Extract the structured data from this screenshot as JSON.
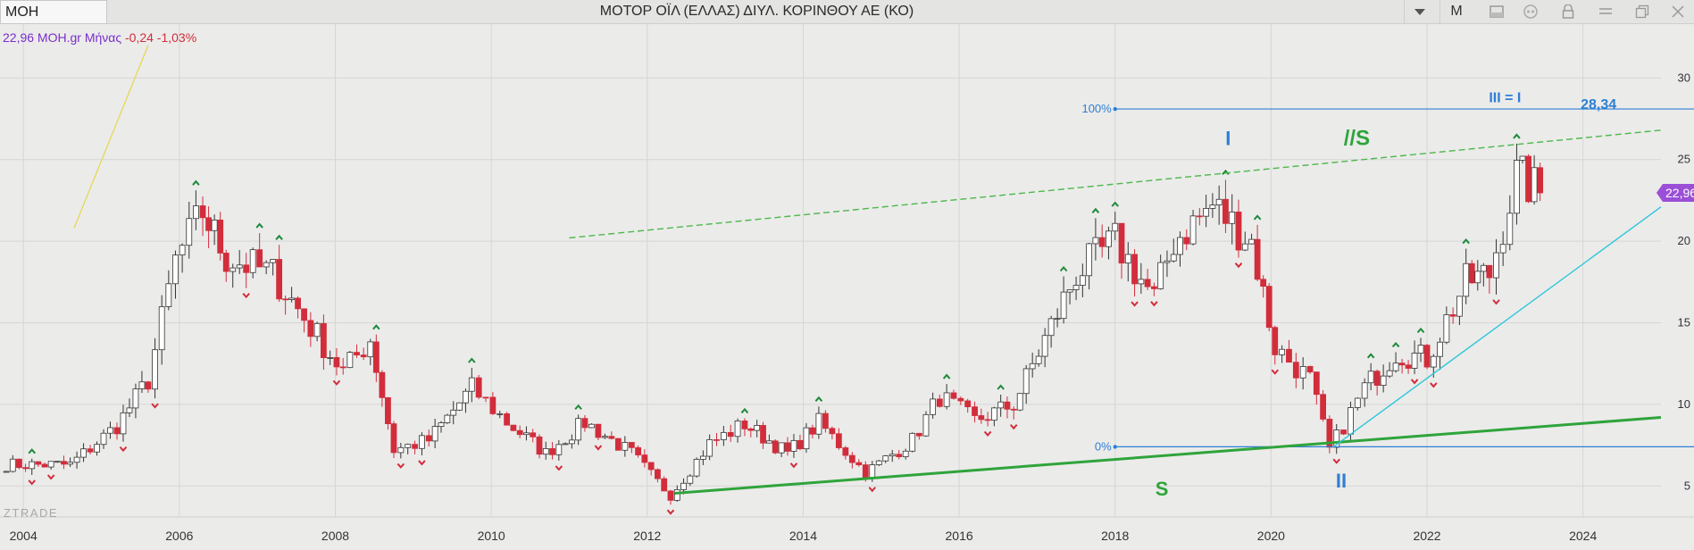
{
  "header": {
    "symbol": "MOH",
    "title": "ΜΟΤΟΡ ΟΪΛ (ΕΛΛΑΣ) ΔΙΥΛ. ΚΟΡΙΝΘΟΥ ΑΕ (ΚΟ)",
    "period_button": "M",
    "icons": [
      "chevron-down-icon",
      "window-icon",
      "quote-icon",
      "lock-icon",
      "minimize-icon",
      "restore-icon",
      "close-icon"
    ]
  },
  "legend": {
    "value": "22,96 MOH.gr Μήνας",
    "change": "-0,24 -1,03%"
  },
  "watermark": "ZTRADE",
  "colors": {
    "up_candle": "#ffffff",
    "down_candle": "#d22d3b",
    "fractal_up": "#1e8a3c",
    "fractal_down": "#d22d3b",
    "support_line": "#2fa43b",
    "channel_line": "#4bb84a",
    "trend_line": "#2cc7d8",
    "fib_line": "#2d7fd4",
    "price_badge": "#9b4fd6"
  },
  "chart_data": {
    "type": "candlestick",
    "interval": "Μήνας",
    "xlim": [
      2003.7,
      2025.0
    ],
    "ylim": [
      3.1,
      33.3
    ],
    "x_ticks": [
      "2004",
      "2006",
      "2008",
      "2010",
      "2012",
      "2014",
      "2016",
      "2018",
      "2020",
      "2022",
      "2024"
    ],
    "y_ticks": [
      "5",
      "10",
      "15",
      "20",
      "25",
      "30"
    ],
    "last_price": "22,96",
    "anchors": [
      [
        2003.7,
        6.3
      ],
      [
        2004.6,
        6.3
      ],
      [
        2005.2,
        8.7
      ],
      [
        2005.6,
        11.5
      ],
      [
        2005.95,
        18.8
      ],
      [
        2006.3,
        21.8
      ],
      [
        2006.6,
        19.0
      ],
      [
        2007.2,
        18.0
      ],
      [
        2007.6,
        15.3
      ],
      [
        2008.1,
        12.0
      ],
      [
        2008.45,
        14.0
      ],
      [
        2008.75,
        7.2
      ],
      [
        2009.2,
        7.8
      ],
      [
        2009.75,
        11.0
      ],
      [
        2010.2,
        8.9
      ],
      [
        2010.7,
        7.0
      ],
      [
        2011.2,
        8.9
      ],
      [
        2011.8,
        7.0
      ],
      [
        2012.3,
        4.4
      ],
      [
        2012.8,
        7.6
      ],
      [
        2013.25,
        8.8
      ],
      [
        2013.8,
        7.0
      ],
      [
        2014.2,
        8.9
      ],
      [
        2014.8,
        5.8
      ],
      [
        2015.4,
        7.8
      ],
      [
        2015.75,
        10.5
      ],
      [
        2016.2,
        9.0
      ],
      [
        2016.7,
        10.0
      ],
      [
        2017.5,
        18.0
      ],
      [
        2018.0,
        20.0
      ],
      [
        2018.5,
        16.5
      ],
      [
        2018.75,
        20.0
      ],
      [
        2019.25,
        22.2
      ],
      [
        2019.75,
        20.0
      ],
      [
        2020.05,
        13.5
      ],
      [
        2020.5,
        11.5
      ],
      [
        2020.75,
        7.2
      ],
      [
        2021.2,
        11.0
      ],
      [
        2021.6,
        13.2
      ],
      [
        2022.0,
        12.8
      ],
      [
        2022.5,
        17.5
      ],
      [
        2022.8,
        18.0
      ],
      [
        2023.15,
        24.0
      ],
      [
        2023.45,
        22.96
      ]
    ],
    "annotations": [
      {
        "text": "I",
        "x": 2019.45,
        "y": 25.9,
        "color": "#2d7fd4"
      },
      {
        "text": "II",
        "x": 2020.9,
        "y": 4.9,
        "color": "#2d7fd4"
      },
      {
        "text": "S",
        "x": 2018.6,
        "y": 4.4,
        "color": "#2fa43b"
      },
      {
        "text": "//S",
        "x": 2021.1,
        "y": 25.9,
        "color": "#2fa43b"
      },
      {
        "text": "III = I",
        "x": 2023.0,
        "y": 28.5,
        "color": "#2d7fd4"
      },
      {
        "text": "28,34",
        "x": 2024.2,
        "y": 28.1,
        "color": "#2d7fd4"
      }
    ],
    "fibonacci": [
      {
        "label": "100%",
        "y": 28.1,
        "x0": 2018.0
      },
      {
        "label": "0%",
        "y": 7.4,
        "x0": 2018.0
      }
    ],
    "lines": [
      {
        "name": "support",
        "p1": [
          2012.35,
          4.55
        ],
        "p2": [
          2025.0,
          9.2
        ],
        "style": "solid"
      },
      {
        "name": "channel",
        "p1": [
          2011.0,
          20.2
        ],
        "p2": [
          2025.0,
          26.8
        ],
        "style": "dashed"
      },
      {
        "name": "trendline",
        "p1": [
          2020.8,
          7.4
        ],
        "p2": [
          2025.0,
          22.1
        ],
        "style": "solid"
      },
      {
        "name": "tool",
        "p1": [
          2004.65,
          20.8
        ],
        "p2": [
          2005.6,
          32.0
        ],
        "style": "solid"
      }
    ]
  }
}
